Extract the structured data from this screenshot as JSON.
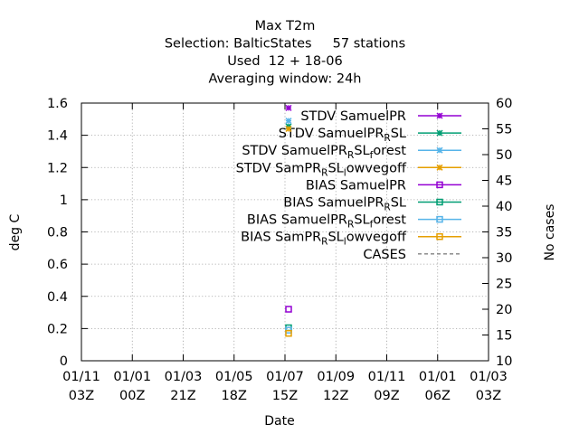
{
  "chart_data": {
    "type": "scatter",
    "title_lines": [
      "Max T2m",
      "Selection: BalticStates     57 stations",
      "Used  12 + 18-06",
      "Averaging window: 24h"
    ],
    "xlabel": "Date",
    "ylabel": "deg C",
    "y2label": "No cases",
    "ylim": [
      0,
      1.6
    ],
    "y2lim": [
      10,
      60
    ],
    "grid": true,
    "legend_position": "top-right",
    "x_ticks": [
      {
        "date": "01/11",
        "hour": "03Z"
      },
      {
        "date": "01/01",
        "hour": "00Z"
      },
      {
        "date": "01/03",
        "hour": "21Z"
      },
      {
        "date": "01/05",
        "hour": "18Z"
      },
      {
        "date": "01/07",
        "hour": "15Z"
      },
      {
        "date": "01/09",
        "hour": "12Z"
      },
      {
        "date": "01/11",
        "hour": "09Z"
      },
      {
        "date": "01/01",
        "hour": "06Z"
      },
      {
        "date": "01/03",
        "hour": "03Z"
      }
    ],
    "y_ticks": [
      "0",
      "0.2",
      "0.4",
      "0.6",
      "0.8",
      "1",
      "1.2",
      "1.4",
      "1.6"
    ],
    "y2_ticks": [
      "10",
      "15",
      "20",
      "25",
      "30",
      "35",
      "40",
      "45",
      "50",
      "55",
      "60"
    ],
    "x_point": "01/07 15Z",
    "series": [
      {
        "name": "STDV SamuelPR",
        "color": "#9400d3",
        "marker": "star",
        "y": 1.57
      },
      {
        "name": "STDV SamuelPR_RSL",
        "color": "#009e73",
        "marker": "star",
        "y": 1.455
      },
      {
        "name": "STDV SamuelPR_RSL_forest",
        "color": "#56b4e9",
        "marker": "star",
        "y": 1.49
      },
      {
        "name": "STDV SamPR_RSL_lowvegoff",
        "color": "#e69f00",
        "marker": "star",
        "y": 1.44
      },
      {
        "name": "BIAS SamuelPR",
        "color": "#9400d3",
        "marker": "square",
        "y": 0.32
      },
      {
        "name": "BIAS SamuelPR_RSL",
        "color": "#009e73",
        "marker": "square",
        "y": 0.205
      },
      {
        "name": "BIAS SamuelPR_RSL_forest",
        "color": "#56b4e9",
        "marker": "square",
        "y": 0.19
      },
      {
        "name": "BIAS SamPR_RSL_lowvegoff",
        "color": "#e69f00",
        "marker": "square",
        "y": 0.17
      },
      {
        "name": "CASES",
        "color": "#808080",
        "marker": "dash",
        "y": null
      }
    ]
  }
}
